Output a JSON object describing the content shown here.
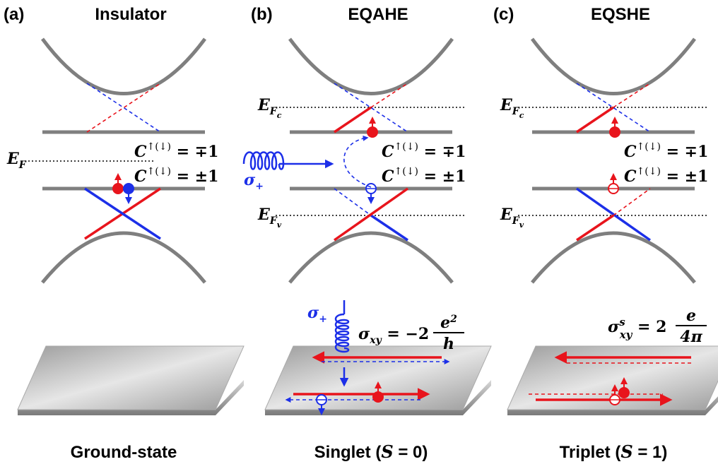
{
  "panels": [
    {
      "label": "(a)",
      "title": "Insulator",
      "caption": "Ground-state",
      "fermi": {
        "base": "E",
        "sub": "F"
      },
      "chern_upper": {
        "base": "C",
        "sup": "↑(↓)",
        "rest": " = ∓1"
      },
      "chern_lower": {
        "base": "C",
        "sup": "↑(↓)",
        "rest": " = ±1"
      }
    },
    {
      "label": "(b)",
      "title": "EQAHE",
      "caption": {
        "pre": "Singlet (",
        "var": "S",
        "post": " = 0)"
      },
      "fermi_c": {
        "base": "E",
        "sub": "F",
        "subsub": "c"
      },
      "fermi_v": {
        "base": "E",
        "sub": "F",
        "subsub": "v"
      },
      "chern_upper": {
        "base": "C",
        "sup": "↑(↓)",
        "rest": " = ∓1"
      },
      "chern_lower": {
        "base": "C",
        "sup": "↑(↓)",
        "rest": " = ±1"
      },
      "photon": {
        "base": "σ",
        "sub": "+"
      },
      "photon_top": {
        "base": "σ",
        "sub": "+"
      },
      "conductance": {
        "base": "σ",
        "sub": "xy",
        "rest": " = −2",
        "num": "e",
        "num_sup": "2",
        "den": "h"
      }
    },
    {
      "label": "(c)",
      "title": "EQSHE",
      "caption": {
        "pre": "Triplet (",
        "var": "S",
        "post": " = 1)"
      },
      "fermi_c": {
        "base": "E",
        "sub": "F",
        "subsub": "c"
      },
      "fermi_v": {
        "base": "E",
        "sub": "F",
        "subsub": "v"
      },
      "chern_upper": {
        "base": "C",
        "sup": "↑(↓)",
        "rest": " = ∓1"
      },
      "chern_lower": {
        "base": "C",
        "sup": "↑(↓)",
        "rest": " = ±1"
      },
      "conductance": {
        "base": "σ",
        "sup": "s",
        "sub": "xy",
        "rest": " = 2",
        "num": "e",
        "den": "4π"
      }
    }
  ]
}
